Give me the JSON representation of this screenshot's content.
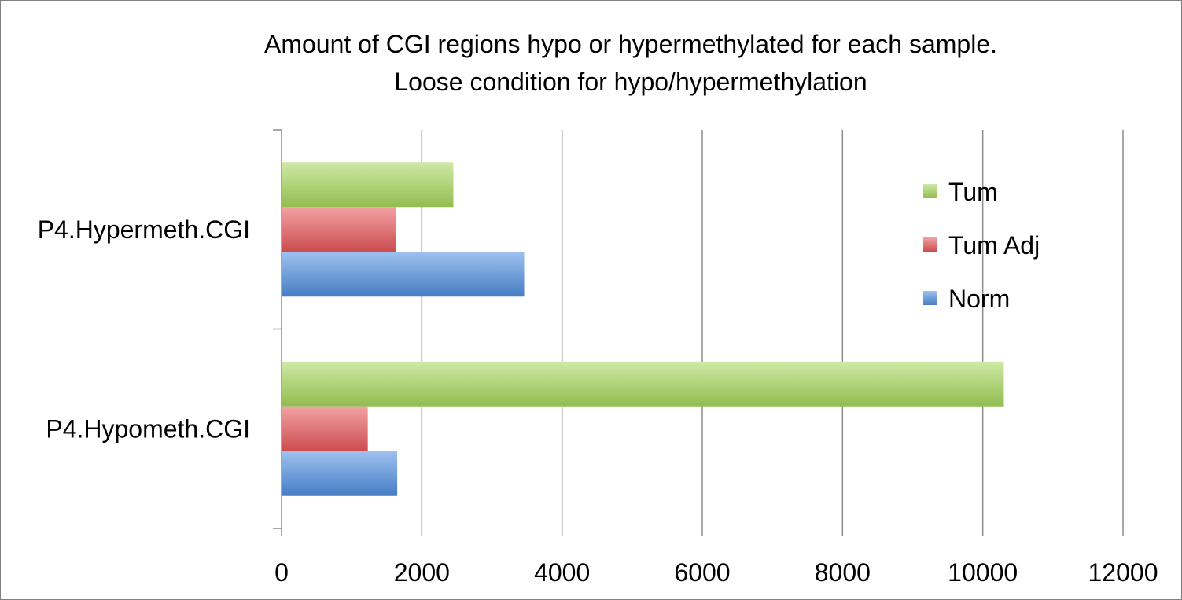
{
  "chart_data": {
    "type": "bar",
    "orientation": "horizontal",
    "title": [
      "Amount of CGI regions hypo or hypermethylated for each sample.",
      "Loose condition for hypo/hypermethylation"
    ],
    "categories": [
      "P4.Hypermeth.CGI",
      "P4.Hypometh.CGI"
    ],
    "series": [
      {
        "name": "Tum",
        "values": [
          2450,
          10300
        ],
        "color": "#a6d75b"
      },
      {
        "name": "Tum Adj",
        "values": [
          1630,
          1230
        ],
        "color": "#e8565a"
      },
      {
        "name": "Norm",
        "values": [
          3460,
          1650
        ],
        "color": "#4f8ee0"
      }
    ],
    "xlim": [
      0,
      12000
    ],
    "xticks": [
      "0",
      "2000",
      "4000",
      "6000",
      "8000",
      "10000",
      "12000"
    ],
    "grid": true,
    "legend_position": "right"
  }
}
